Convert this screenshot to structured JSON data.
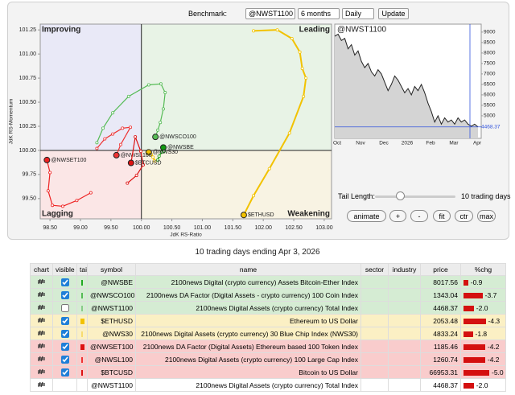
{
  "toolbar": {
    "benchmark_label": "Benchmark:",
    "benchmark": "@NWST1100",
    "period": "6 months",
    "frequency": "Daily",
    "update": "Update"
  },
  "rrg": {
    "quadrants": {
      "improving": "Improving",
      "leading": "Leading",
      "lagging": "Lagging",
      "weakening": "Weakening"
    },
    "x_label": "JdK RS-Ratio",
    "y_label": "JdK RS-Momentum",
    "xlim": [
      98.34,
      103.12
    ],
    "ylim": [
      99.29,
      101.31
    ],
    "xticks": [
      {
        "value": 98.5,
        "label": "98.50"
      },
      {
        "value": 99,
        "label": "99.00"
      },
      {
        "value": 99.5,
        "label": "99.50"
      },
      {
        "value": 100,
        "label": "100.00"
      },
      {
        "value": 100.5,
        "label": "100.50"
      },
      {
        "value": 101,
        "label": "101.00"
      },
      {
        "value": 101.5,
        "label": "101.50"
      },
      {
        "value": 102,
        "label": "102.00"
      },
      {
        "value": 102.5,
        "label": "102.50"
      },
      {
        "value": 103,
        "label": "103.00"
      }
    ],
    "yticks": [
      {
        "value": 99.5,
        "label": "99.50"
      },
      {
        "value": 99.75,
        "label": "99.75"
      },
      {
        "value": 100,
        "label": "100.00"
      },
      {
        "value": 100.25,
        "label": "100.25"
      },
      {
        "value": 100.5,
        "label": "100.50"
      },
      {
        "value": 100.75,
        "label": "100.75"
      },
      {
        "value": 101,
        "label": "101.00"
      },
      {
        "value": 101.25,
        "label": "101.25"
      }
    ],
    "series": [
      {
        "name": "@NWSCO100",
        "color": "#55bb55",
        "x": [
          99.27,
          99.37,
          99.53,
          99.79,
          100.12,
          100.32,
          100.39,
          100.36,
          100.31,
          100.27,
          100.23
        ],
        "y": [
          100.08,
          100.23,
          100.39,
          100.56,
          100.68,
          100.69,
          100.6,
          100.43,
          100.29,
          100.21,
          100.14
        ]
      },
      {
        "name": "@NWSBE",
        "color": "#119911",
        "x": [
          100.27,
          100.29,
          100.33,
          100.37,
          100.36
        ],
        "y": [
          99.9,
          99.94,
          99.98,
          99.99,
          100.03
        ]
      },
      {
        "name": "@NWS30",
        "color": "#f2c200",
        "x": [
          100.22,
          100.19,
          100.16,
          100.12
        ],
        "y": [
          99.89,
          99.93,
          99.96,
          99.98
        ]
      },
      {
        "name": "$ETHUSD",
        "color": "#f2c200",
        "x": [
          101.84,
          102.23,
          102.47,
          102.6,
          102.64,
          102.7,
          102.66,
          102.43,
          102.1,
          101.84,
          101.68
        ],
        "y": [
          101.24,
          101.25,
          101.16,
          101.02,
          100.85,
          100.75,
          100.56,
          100.18,
          99.81,
          99.53,
          99.33
        ]
      },
      {
        "name": "@NWSET100",
        "color": "#ee2222",
        "x": [
          99.17,
          98.94,
          98.71,
          98.54,
          98.47,
          98.5,
          98.45
        ],
        "y": [
          99.56,
          99.48,
          99.42,
          99.43,
          99.58,
          99.77,
          99.9
        ]
      },
      {
        "name": "@NWSL100",
        "color": "#ee3333",
        "x": [
          99.27,
          99.4,
          99.53,
          99.69,
          99.82,
          99.66,
          99.59
        ],
        "y": [
          100.02,
          100.12,
          100.17,
          100.23,
          100.24,
          100.06,
          99.95
        ]
      },
      {
        "name": "$BTCUSD",
        "color": "#dd1111",
        "x": [
          99.77,
          99.92,
          100.03,
          99.99,
          99.9,
          99.83
        ],
        "y": [
          99.66,
          99.74,
          99.85,
          99.99,
          100.14,
          99.87
        ]
      }
    ]
  },
  "price_chart": {
    "title": "@NWST1100",
    "ylim": [
      3920,
      9380
    ],
    "yticks": [
      5000,
      5500,
      6000,
      6500,
      7000,
      7500,
      8000,
      8500,
      9000
    ],
    "months": [
      "Oct",
      "Nov",
      "Dec",
      "2026",
      "Feb",
      "Mar",
      "Apr"
    ],
    "values": [
      8800,
      8900,
      8600,
      8700,
      8200,
      8400,
      7900,
      8100,
      7600,
      7300,
      7500,
      7100,
      6900,
      7200,
      7000,
      6600,
      6200,
      6500,
      6900,
      6700,
      6400,
      6100,
      6300,
      6000,
      6400,
      6200,
      6500,
      6100,
      5600,
      5200,
      4700,
      5000,
      4600,
      4900,
      4700,
      4800,
      4600,
      4900,
      4700,
      4800,
      4600,
      4500,
      4600,
      4468.37
    ]
  },
  "tail": {
    "label": "Tail Length:",
    "value_label": "10 trading days"
  },
  "buttons": [
    "animate",
    "+",
    "-",
    "fit",
    "ctr",
    "max"
  ],
  "caption": "10 trading days ending Apr 3, 2026",
  "table": {
    "columns": [
      "chart",
      "visible",
      "tail",
      "symbol",
      "name",
      "sector",
      "industry",
      "price",
      "%chg"
    ],
    "rows": [
      {
        "symbol": "@NWSBE",
        "name": "2100news Digital (crypto currency) Assets Bitcoin-Ether Index",
        "price": 8017.56,
        "chg": -0.9,
        "visible": true,
        "color": "#d5ecd3",
        "tail_color": "#22aa22"
      },
      {
        "symbol": "@NWSCO100",
        "name": "2100news DA Factor (Digital Assets - crypto currency) 100 Coin Index",
        "price": 1343.04,
        "chg": -3.7,
        "visible": true,
        "color": "#d5ecd3",
        "tail_color": "#55bb55"
      },
      {
        "symbol": "@NWST1100",
        "name": "2100news Digital Assets (crypto currency) Total Index",
        "price": 4468.37,
        "chg": -2.0,
        "chg_label": "-2.0",
        "visible": false,
        "color": "#d5ecd3",
        "tail_color": "#88cc88"
      },
      {
        "symbol": "$ETHUSD",
        "name": "Ethereum to US Dollar",
        "price": 2053.48,
        "chg": -4.3,
        "visible": true,
        "color": "#fbf0c4",
        "tail_color": "#f2c200"
      },
      {
        "symbol": "@NWS30",
        "name": "2100news Digital Assets (crypto currency) 30 Blue Chip Index (NWS30)",
        "price": 4833.24,
        "chg": -1.8,
        "visible": true,
        "color": "#fbf0c4",
        "tail_color": "#f7dc70"
      },
      {
        "symbol": "@NWSET100",
        "name": "2100news DA Factor (Digital Assets) Ethereum based 100 Token Index",
        "price": 1185.46,
        "chg": -4.2,
        "visible": true,
        "color": "#f9cccc",
        "tail_color": "#dd1111"
      },
      {
        "symbol": "@NWSL100",
        "name": "2100news Digital Assets (crypto currency) 100 Large Cap Index",
        "price": 1260.74,
        "chg": -4.2,
        "visible": true,
        "color": "#f9cccc",
        "tail_color": "#ee3333"
      },
      {
        "symbol": "$BTCUSD",
        "name": "Bitcoin to US Dollar",
        "price": 66953.31,
        "chg": -5.0,
        "chg_label": "-5.0",
        "visible": true,
        "color": "#f9cccc",
        "tail_color": "#dd1111"
      },
      {
        "symbol": "@NWST1100",
        "name": "2100news Digital Assets (crypto currency) Total Index",
        "price": 4468.37,
        "chg": -2.0,
        "chg_label": "-2.0",
        "visible": null,
        "color": "#ffffff",
        "tail_color": null
      }
    ]
  }
}
